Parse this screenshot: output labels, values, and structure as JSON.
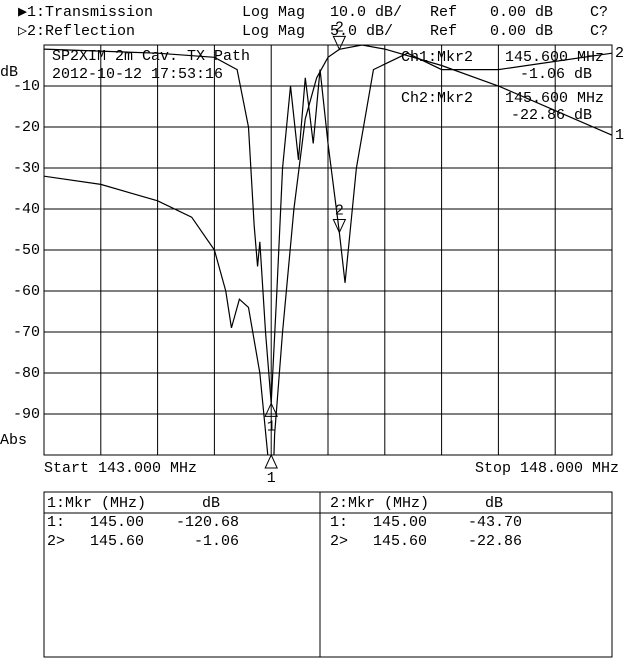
{
  "header": {
    "rows": [
      [
        "▶1:Transmission",
        "Log Mag",
        "10.0 dB/",
        "Ref",
        "0.00 dB",
        "C?"
      ],
      [
        "▷2:Reflection",
        "Log Mag",
        "5.0 dB/",
        "Ref",
        "0.00 dB",
        "C?"
      ]
    ]
  },
  "chart_data": {
    "type": "line",
    "title": "SP2XIM 2m Cav. TX Path",
    "subtitle": "2012-10-12 17:53:16",
    "ylabel": "dB",
    "ylabel2": "Abs",
    "start_label": "Start 143.000 MHz",
    "stop_label": "Stop 148.000 MHz",
    "xlim": [
      143,
      148
    ],
    "xticks": [
      143,
      143.5,
      144,
      144.5,
      145,
      145.5,
      146,
      146.5,
      147,
      147.5,
      148
    ],
    "ylim": [
      -100,
      0
    ],
    "yticks": [
      -10,
      -20,
      -30,
      -40,
      -50,
      -60,
      -70,
      -80,
      -90
    ],
    "y2lim": [
      -50,
      0
    ],
    "grid": true,
    "series": [
      {
        "name": "1",
        "color": "#000000",
        "x": [
          143,
          143.5,
          144,
          144.3,
          144.5,
          144.6,
          144.65,
          144.72,
          144.8,
          144.9,
          144.97,
          145,
          145.03,
          145.1,
          145.2,
          145.3,
          145.4,
          145.5,
          145.6,
          145.8,
          146,
          146.5,
          147,
          147.5,
          148
        ],
        "values": [
          -32,
          -34,
          -38,
          -42,
          -50,
          -60,
          -69,
          -62,
          -64,
          -80,
          -100,
          -120.68,
          -95,
          -70,
          -40,
          -18,
          -8,
          -3,
          -1.06,
          0,
          -1,
          -5,
          -10,
          -16,
          -22
        ]
      },
      {
        "name": "2",
        "color": "#000000",
        "axis": "y2",
        "x": [
          143,
          144,
          144.5,
          144.7,
          144.8,
          144.85,
          144.88,
          144.9,
          144.95,
          145,
          145.05,
          145.1,
          145.17,
          145.24,
          145.3,
          145.37,
          145.43,
          145.5,
          145.6,
          145.65,
          145.75,
          145.9,
          146.2,
          146.5,
          147,
          147.5,
          148
        ],
        "values": [
          -0.5,
          -1,
          -1.5,
          -3,
          -10,
          -22,
          -27,
          -24,
          -35,
          -43.7,
          -30,
          -15,
          -5,
          -14,
          -4,
          -12,
          -3,
          -12,
          -22.86,
          -29,
          -15,
          -3,
          -1,
          -3,
          -3,
          -2,
          -1
        ]
      }
    ],
    "markers": [
      {
        "label": "1",
        "x": 145.0,
        "values": [
          -120.68,
          -43.7
        ]
      },
      {
        "label": "2",
        "x": 145.6,
        "values": [
          -1.06,
          -22.86
        ]
      }
    ],
    "readouts": [
      {
        "label": "Ch1:Mkr2",
        "freq": "145.600 MHz",
        "value": "-1.06 dB"
      },
      {
        "label": "Ch2:Mkr2",
        "freq": "145.600 MHz",
        "value": "-22.86 dB"
      }
    ]
  },
  "marker_tables": [
    {
      "header": [
        "1:Mkr (MHz)",
        "dB"
      ],
      "rows": [
        [
          "1:",
          "145.00",
          "-120.68"
        ],
        [
          "2>",
          "145.60",
          "-1.06"
        ]
      ]
    },
    {
      "header": [
        "2:Mkr (MHz)",
        "dB"
      ],
      "rows": [
        [
          "1:",
          "145.00",
          "-43.70"
        ],
        [
          "2>",
          "145.60",
          "-22.86"
        ]
      ]
    }
  ]
}
